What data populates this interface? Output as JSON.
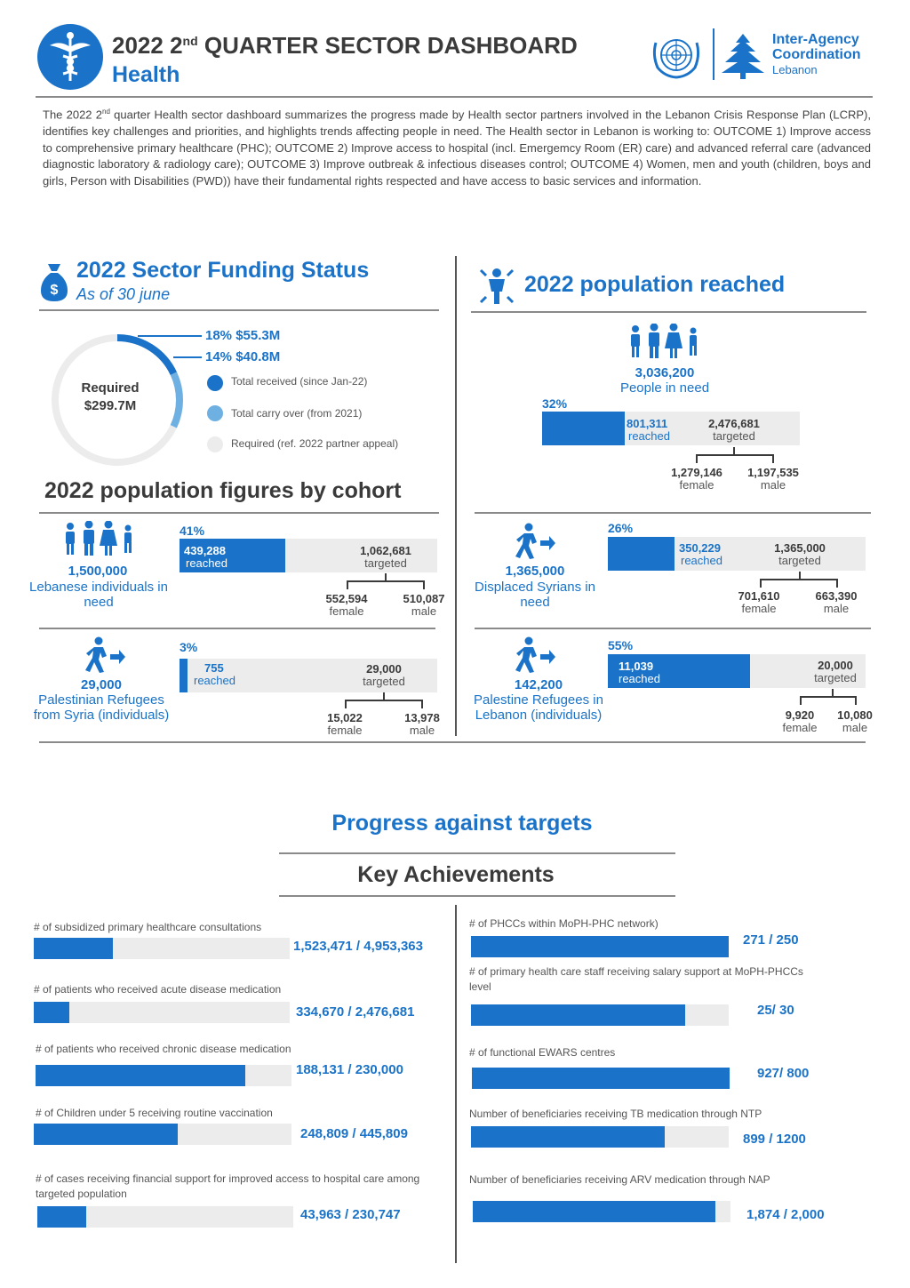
{
  "header": {
    "title_main": "2022 2",
    "title_sup": "nd",
    "title_rest": " QUARTER SECTOR DASHBOARD",
    "sector": "Health",
    "org_line1": "Inter-Agency",
    "org_line2": "Coordination",
    "org_line3": "Lebanon"
  },
  "intro": {
    "part1": "The 2022 2",
    "sup": "nd",
    "part2": " quarter Health sector dashboard summarizes the progress made by Health sector partners involved in the Lebanon Crisis Response Plan (LCRP), identifies key challenges and priorities, and highlights trends affecting people in need. The Health sector in Lebanon is working to: OUTCOME 1) Improve access to comprehensive primary healthcare (PHC); OUTCOME 2) Improve access to hospital (incl. Emergemcy Room (ER) care) and advanced referral care (advanced diagnostic laboratory & radiology care); OUTCOME 3) Improve outbreak & infectious diseases control; OUTCOME 4) Women, men and youth (children, boys and girls, Person with Disabilities (PWD)) have their fundamental rights respected and have access to basic services and information."
  },
  "funding": {
    "title": "2022 Sector Funding Status",
    "subtitle": "As of 30 june",
    "donut_label1": "Required",
    "donut_label2": "$299.7M",
    "received_pct": "18%",
    "received_amt": "$55.3M",
    "received_frac": 0.18,
    "carry_pct": "14%",
    "carry_amt": "$40.8M",
    "carry_frac": 0.14,
    "legend": [
      {
        "label": "Total received (since Jan-22)",
        "color": "#1a73c8"
      },
      {
        "label": "Total carry over (from 2021)",
        "color": "#6fb0e3"
      },
      {
        "label": "Required (ref. 2022 partner appeal)",
        "color": "#ececec"
      }
    ]
  },
  "population_reached": {
    "title": "2022 population reached",
    "in_need": "3,036,200",
    "in_need_label": "People in need",
    "pct": "32%",
    "frac": 0.32,
    "reached": "801,311",
    "reached_label": "reached",
    "targeted": "2,476,681",
    "targeted_label": "targeted",
    "female": "1,279,146",
    "female_label": "female",
    "male": "1,197,535",
    "male_label": "male"
  },
  "cohorts_title": "2022 population figures by cohort",
  "cohorts": [
    {
      "num": "1,500,000",
      "label": "Lebanese individuals in need",
      "pct": "41%",
      "frac": 0.41,
      "reached": "439,288",
      "reached_label": "reached",
      "targeted": "1,062,681",
      "targeted_label": "targeted",
      "female": "552,594",
      "female_label": "female",
      "male": "510,087",
      "male_label": "male"
    },
    {
      "num": "1,365,000",
      "label": "Displaced Syrians in need",
      "pct": "26%",
      "frac": 0.26,
      "reached": "350,229",
      "reached_label": "reached",
      "targeted": "1,365,000",
      "targeted_label": "targeted",
      "female": "701,610",
      "female_label": "female",
      "male": "663,390",
      "male_label": "male"
    },
    {
      "num": "29,000",
      "label": "Palestinian Refugees from Syria (individuals)",
      "pct": "3%",
      "frac": 0.03,
      "reached": "755",
      "reached_label": "reached",
      "targeted": "29,000",
      "targeted_label": "targeted",
      "female": "15,022",
      "female_label": "female",
      "male": "13,978",
      "male_label": "male"
    },
    {
      "num": "142,200",
      "label": "Palestine Refugees in Lebanon (individuals)",
      "pct": "55%",
      "frac": 0.55,
      "reached": "11,039",
      "reached_label": "reached",
      "targeted": "20,000",
      "targeted_label": "targeted",
      "female": "9,920",
      "female_label": "female",
      "male": "10,080",
      "male_label": "male"
    }
  ],
  "progress_title": "Progress against targets",
  "achievements_title": "Key Achievements",
  "achievements_left": [
    {
      "label": "# of subsidized primary healthcare consultations",
      "value": "1,523,471 / 4,953,363",
      "frac": 0.31
    },
    {
      "label": "# of patients who received acute disease medication",
      "value": "334,670 / 2,476,681",
      "frac": 0.14
    },
    {
      "label": "# of patients who received chronic disease medication",
      "value": "188,131 / 230,000",
      "frac": 0.82
    },
    {
      "label": "# of Children under 5 receiving routine vaccination",
      "value": "248,809 / 445,809",
      "frac": 0.56
    },
    {
      "label": "# of cases receiving financial support for improved access to hospital care among targeted population",
      "value": "43,963 / 230,747",
      "frac": 0.19
    }
  ],
  "achievements_right": [
    {
      "label": "# of PHCCs within MoPH-PHC network)",
      "value": "271 / 250",
      "frac": 1.0
    },
    {
      "label": "# of primary health care staff receiving salary support at MoPH-PHCCs level",
      "value": "25/ 30",
      "frac": 0.83
    },
    {
      "label": "# of functional EWARS centres",
      "value": "927/ 800",
      "frac": 1.0
    },
    {
      "label": "Number of beneficiaries receiving TB medication through NTP",
      "value": "899 / 1200",
      "frac": 0.75
    },
    {
      "label": "Number of beneficiaries receiving ARV medication through NAP",
      "value": "1,874 / 2,000",
      "frac": 0.94
    }
  ]
}
